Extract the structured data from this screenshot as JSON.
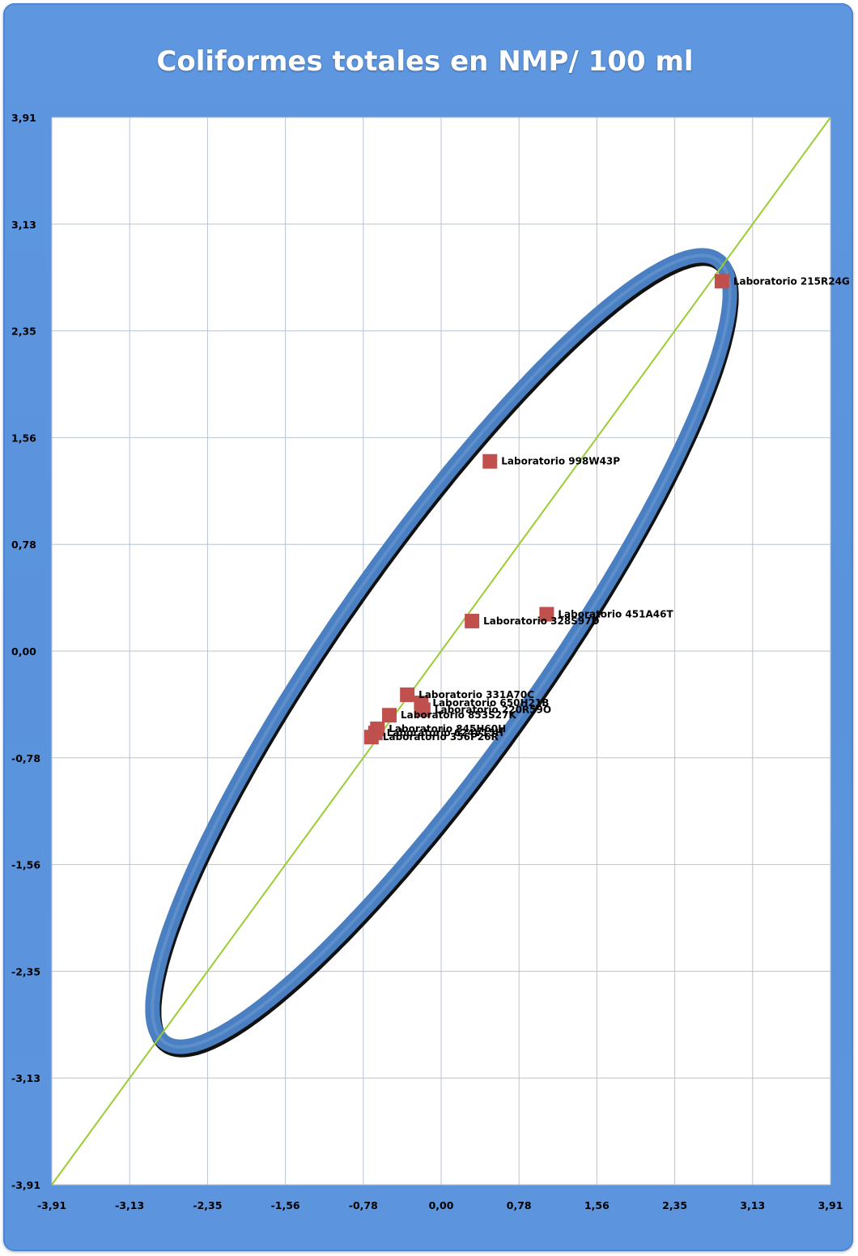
{
  "chart_data": {
    "type": "scatter",
    "title": "Coliformes totales en NMP/ 100 ml",
    "xlim": [
      -3.91,
      3.91
    ],
    "ylim": [
      -3.91,
      3.91
    ],
    "x_ticks": [
      "-3,91",
      "-3,13",
      "-2,35",
      "-1,56",
      "-0,78",
      "0,00",
      "0,78",
      "1,56",
      "2,35",
      "3,13",
      "3,91"
    ],
    "y_ticks": [
      "3,91",
      "3,13",
      "2,35",
      "1,56",
      "0,78",
      "0,00",
      "-0,78",
      "-1,56",
      "-2,35",
      "-3,13",
      "-3,91"
    ],
    "grid": true,
    "reference_line": {
      "from": [
        -3.91,
        -3.91
      ],
      "to": [
        3.91,
        3.91
      ],
      "color": "#9acd32"
    },
    "ellipse": {
      "center": [
        0.0,
        0.0
      ],
      "semi_major": 4.0,
      "semi_minor": 0.9,
      "angle_deg": 45,
      "color": "#4a7fc1"
    },
    "marker_color": "#c0504d",
    "points": [
      {
        "label": "Laboratorio 215R24G",
        "x": 2.82,
        "y": 2.71
      },
      {
        "label": "Laboratorio 998W43P",
        "x": 0.49,
        "y": 1.39
      },
      {
        "label": "Laboratorio 451A46T",
        "x": 1.06,
        "y": 0.27
      },
      {
        "label": "Laboratorio 328S97D",
        "x": 0.31,
        "y": 0.22
      },
      {
        "label": "Laboratorio 331A70C",
        "x": -0.34,
        "y": -0.32
      },
      {
        "label": "Laboratorio 650H21B",
        "x": -0.2,
        "y": -0.38
      },
      {
        "label": "Laboratorio 220R59O",
        "x": -0.18,
        "y": -0.43
      },
      {
        "label": "Laboratorio 853S27K",
        "x": -0.52,
        "y": -0.47
      },
      {
        "label": "Laboratorio 845H60H",
        "x": -0.64,
        "y": -0.57
      },
      {
        "label": "Laboratorio 624V15H",
        "x": -0.66,
        "y": -0.6
      },
      {
        "label": "Laboratorio 356P26R",
        "x": -0.7,
        "y": -0.63
      }
    ]
  }
}
